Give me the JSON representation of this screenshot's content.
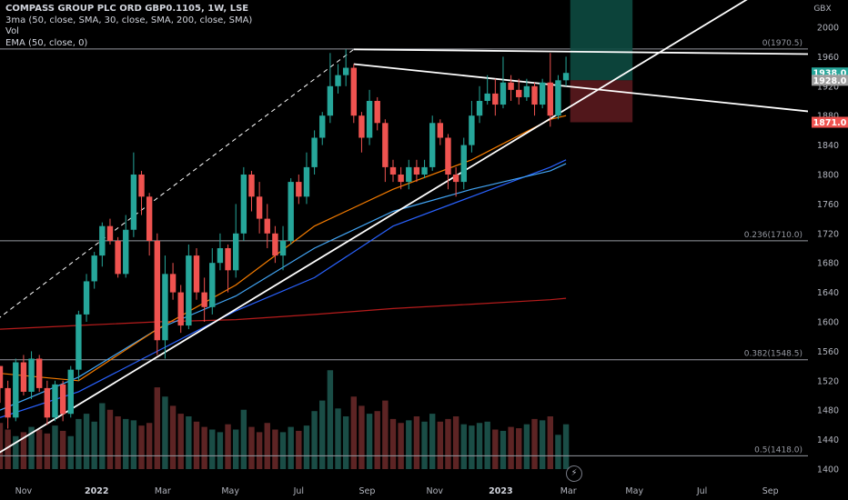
{
  "legend": {
    "title": "COMPASS GROUP PLC ORD GBP0.1105, 1W, LSE",
    "line2": "3ma (50, close, SMA, 30, close, SMA, 200, close, SMA)",
    "line3": "Vol",
    "line4": "EMA (50, close, 0)"
  },
  "currency": "GBX",
  "colors": {
    "background": "#000000",
    "up": "#26a69a",
    "down": "#ef5350",
    "sma50": "#2962ff",
    "sma30": "#42a5f5",
    "sma200": "#b71c1c",
    "ema50": "#f57c00",
    "trendline": "#ffffff",
    "fib": "#9598a1",
    "price_badge": "#9e9e9e",
    "stop_badge": "#ef5350"
  },
  "flash_icon": "lightning-icon",
  "chart_data": {
    "type": "candlestick",
    "timeframe": "1W",
    "y_axis": {
      "ticks": [
        1400,
        1440,
        1480,
        1520,
        1560,
        1600,
        1640,
        1680,
        1720,
        1760,
        1800,
        1840,
        1880,
        1920,
        1960,
        2000
      ],
      "range": [
        1380,
        2070
      ],
      "unit": "GBX"
    },
    "x_axis": {
      "labels": [
        {
          "text": "Nov",
          "bar": 3.0,
          "bold": false
        },
        {
          "text": "2022",
          "bar": 12.3,
          "bold": true
        },
        {
          "text": "Mar",
          "bar": 20.7,
          "bold": false
        },
        {
          "text": "May",
          "bar": 29.3,
          "bold": false
        },
        {
          "text": "Jul",
          "bar": 38.0,
          "bold": false
        },
        {
          "text": "Sep",
          "bar": 46.7,
          "bold": false
        },
        {
          "text": "Nov",
          "bar": 55.3,
          "bold": false
        },
        {
          "text": "2023",
          "bar": 63.7,
          "bold": true
        },
        {
          "text": "Mar",
          "bar": 72.3,
          "bold": false
        },
        {
          "text": "May",
          "bar": 80.7,
          "bold": false
        },
        {
          "text": "Jul",
          "bar": 89.3,
          "bold": false
        },
        {
          "text": "Sep",
          "bar": 98.0,
          "bold": false
        }
      ]
    },
    "candles": [
      [
        1540,
        1510,
        1540,
        1490
      ],
      [
        1510,
        1470,
        1520,
        1455
      ],
      [
        1470,
        1545,
        1550,
        1465
      ],
      [
        1545,
        1505,
        1555,
        1500
      ],
      [
        1505,
        1550,
        1560,
        1495
      ],
      [
        1550,
        1510,
        1555,
        1505
      ],
      [
        1510,
        1470,
        1520,
        1460
      ],
      [
        1470,
        1515,
        1520,
        1465
      ],
      [
        1515,
        1475,
        1520,
        1465
      ],
      [
        1475,
        1535,
        1540,
        1470
      ],
      [
        1535,
        1610,
        1615,
        1520
      ],
      [
        1610,
        1655,
        1665,
        1600
      ],
      [
        1655,
        1690,
        1695,
        1645
      ],
      [
        1690,
        1730,
        1735,
        1675
      ],
      [
        1730,
        1710,
        1740,
        1705
      ],
      [
        1710,
        1665,
        1715,
        1660
      ],
      [
        1665,
        1725,
        1745,
        1660
      ],
      [
        1725,
        1800,
        1830,
        1715
      ],
      [
        1800,
        1770,
        1805,
        1745
      ],
      [
        1770,
        1710,
        1775,
        1690
      ],
      [
        1710,
        1575,
        1720,
        1555
      ],
      [
        1575,
        1665,
        1690,
        1550
      ],
      [
        1665,
        1640,
        1680,
        1630
      ],
      [
        1640,
        1595,
        1650,
        1585
      ],
      [
        1595,
        1690,
        1705,
        1590
      ],
      [
        1690,
        1640,
        1700,
        1630
      ],
      [
        1640,
        1620,
        1660,
        1600
      ],
      [
        1620,
        1680,
        1700,
        1610
      ],
      [
        1680,
        1700,
        1720,
        1670
      ],
      [
        1700,
        1670,
        1705,
        1640
      ],
      [
        1670,
        1720,
        1760,
        1660
      ],
      [
        1720,
        1800,
        1810,
        1710
      ],
      [
        1800,
        1770,
        1805,
        1750
      ],
      [
        1770,
        1740,
        1790,
        1720
      ],
      [
        1740,
        1720,
        1760,
        1700
      ],
      [
        1720,
        1690,
        1730,
        1680
      ],
      [
        1690,
        1710,
        1730,
        1670
      ],
      [
        1710,
        1790,
        1795,
        1705
      ],
      [
        1790,
        1770,
        1800,
        1760
      ],
      [
        1770,
        1810,
        1830,
        1760
      ],
      [
        1810,
        1850,
        1860,
        1800
      ],
      [
        1850,
        1880,
        1885,
        1840
      ],
      [
        1880,
        1920,
        1965,
        1870
      ],
      [
        1920,
        1935,
        1950,
        1910
      ],
      [
        1935,
        1945,
        1970,
        1920
      ],
      [
        1945,
        1880,
        1950,
        1870
      ],
      [
        1880,
        1850,
        1885,
        1830
      ],
      [
        1850,
        1900,
        1915,
        1840
      ],
      [
        1900,
        1870,
        1905,
        1860
      ],
      [
        1870,
        1810,
        1875,
        1790
      ],
      [
        1810,
        1800,
        1820,
        1790
      ],
      [
        1800,
        1790,
        1810,
        1780
      ],
      [
        1790,
        1810,
        1820,
        1780
      ],
      [
        1810,
        1800,
        1820,
        1790
      ],
      [
        1800,
        1810,
        1820,
        1795
      ],
      [
        1810,
        1870,
        1880,
        1805
      ],
      [
        1870,
        1850,
        1875,
        1840
      ],
      [
        1850,
        1800,
        1855,
        1780
      ],
      [
        1800,
        1790,
        1810,
        1770
      ],
      [
        1790,
        1840,
        1850,
        1780
      ],
      [
        1840,
        1880,
        1900,
        1830
      ],
      [
        1880,
        1900,
        1920,
        1870
      ],
      [
        1900,
        1910,
        1935,
        1895
      ],
      [
        1910,
        1895,
        1930,
        1880
      ],
      [
        1895,
        1925,
        1960,
        1890
      ],
      [
        1925,
        1915,
        1935,
        1900
      ],
      [
        1915,
        1905,
        1930,
        1895
      ],
      [
        1905,
        1920,
        1930,
        1900
      ],
      [
        1920,
        1895,
        1925,
        1880
      ],
      [
        1895,
        1925,
        1930,
        1890
      ],
      [
        1925,
        1880,
        1965,
        1865
      ],
      [
        1880,
        1928,
        1935,
        1875
      ],
      [
        1928,
        1938,
        1960,
        1920
      ]
    ],
    "volume": [
      0.35,
      0.3,
      0.25,
      0.28,
      0.32,
      0.3,
      0.27,
      0.33,
      0.29,
      0.25,
      0.38,
      0.42,
      0.36,
      0.5,
      0.45,
      0.4,
      0.38,
      0.37,
      0.33,
      0.35,
      0.62,
      0.55,
      0.48,
      0.42,
      0.4,
      0.36,
      0.32,
      0.3,
      0.28,
      0.34,
      0.3,
      0.45,
      0.32,
      0.28,
      0.35,
      0.3,
      0.28,
      0.32,
      0.29,
      0.33,
      0.44,
      0.52,
      0.75,
      0.46,
      0.4,
      0.55,
      0.48,
      0.42,
      0.44,
      0.52,
      0.38,
      0.35,
      0.37,
      0.4,
      0.36,
      0.42,
      0.36,
      0.38,
      0.4,
      0.34,
      0.33,
      0.35,
      0.36,
      0.3,
      0.29,
      0.32,
      0.31,
      0.34,
      0.38,
      0.37,
      0.4,
      0.26,
      0.34
    ],
    "sma50": [
      [
        0,
        1470
      ],
      [
        10,
        1505
      ],
      [
        20,
        1560
      ],
      [
        30,
        1615
      ],
      [
        40,
        1660
      ],
      [
        50,
        1730
      ],
      [
        60,
        1770
      ],
      [
        70,
        1810
      ],
      [
        72,
        1820
      ]
    ],
    "sma30": [
      [
        0,
        1480
      ],
      [
        10,
        1525
      ],
      [
        20,
        1590
      ],
      [
        30,
        1635
      ],
      [
        40,
        1700
      ],
      [
        50,
        1750
      ],
      [
        60,
        1780
      ],
      [
        70,
        1805
      ],
      [
        72,
        1815
      ]
    ],
    "sma200": [
      [
        0,
        1590
      ],
      [
        10,
        1595
      ],
      [
        20,
        1600
      ],
      [
        30,
        1603
      ],
      [
        40,
        1610
      ],
      [
        50,
        1618
      ],
      [
        60,
        1624
      ],
      [
        70,
        1630
      ],
      [
        72,
        1632
      ]
    ],
    "ema50": [
      [
        0,
        1530
      ],
      [
        10,
        1520
      ],
      [
        20,
        1590
      ],
      [
        30,
        1650
      ],
      [
        40,
        1730
      ],
      [
        50,
        1780
      ],
      [
        60,
        1820
      ],
      [
        70,
        1875
      ],
      [
        72,
        1880
      ]
    ],
    "trendlines": [
      {
        "from": [
          -2,
          1410
        ],
        "to": [
          100,
          2070
        ],
        "style": "solid"
      },
      {
        "from": [
          -2,
          1590
        ],
        "to": [
          45,
          1970
        ],
        "style": "dashed"
      },
      {
        "from": [
          45,
          1970
        ],
        "to": [
          108,
          1963
        ],
        "style": "solid"
      },
      {
        "from": [
          45,
          1950
        ],
        "to": [
          108,
          1880
        ],
        "style": "solid"
      }
    ],
    "fib_levels": [
      {
        "label": "0(1970.5)",
        "value": 1970.5
      },
      {
        "label": "0.236(1710.0)",
        "value": 1710.0
      },
      {
        "label": "0.382(1548.5)",
        "value": 1548.5
      },
      {
        "label": "0.5(1418.0)",
        "value": 1418.0
      }
    ],
    "position": {
      "entry": 1928,
      "target": 2070,
      "stop": 1871,
      "from": 73,
      "to": 80
    },
    "price_labels": [
      {
        "value": 1938,
        "text": "1938.0",
        "kind": "last"
      },
      {
        "value": 1928,
        "text": "1928.0",
        "kind": "entry"
      },
      {
        "value": 1871,
        "text": "1871.0",
        "kind": "stop"
      }
    ]
  }
}
